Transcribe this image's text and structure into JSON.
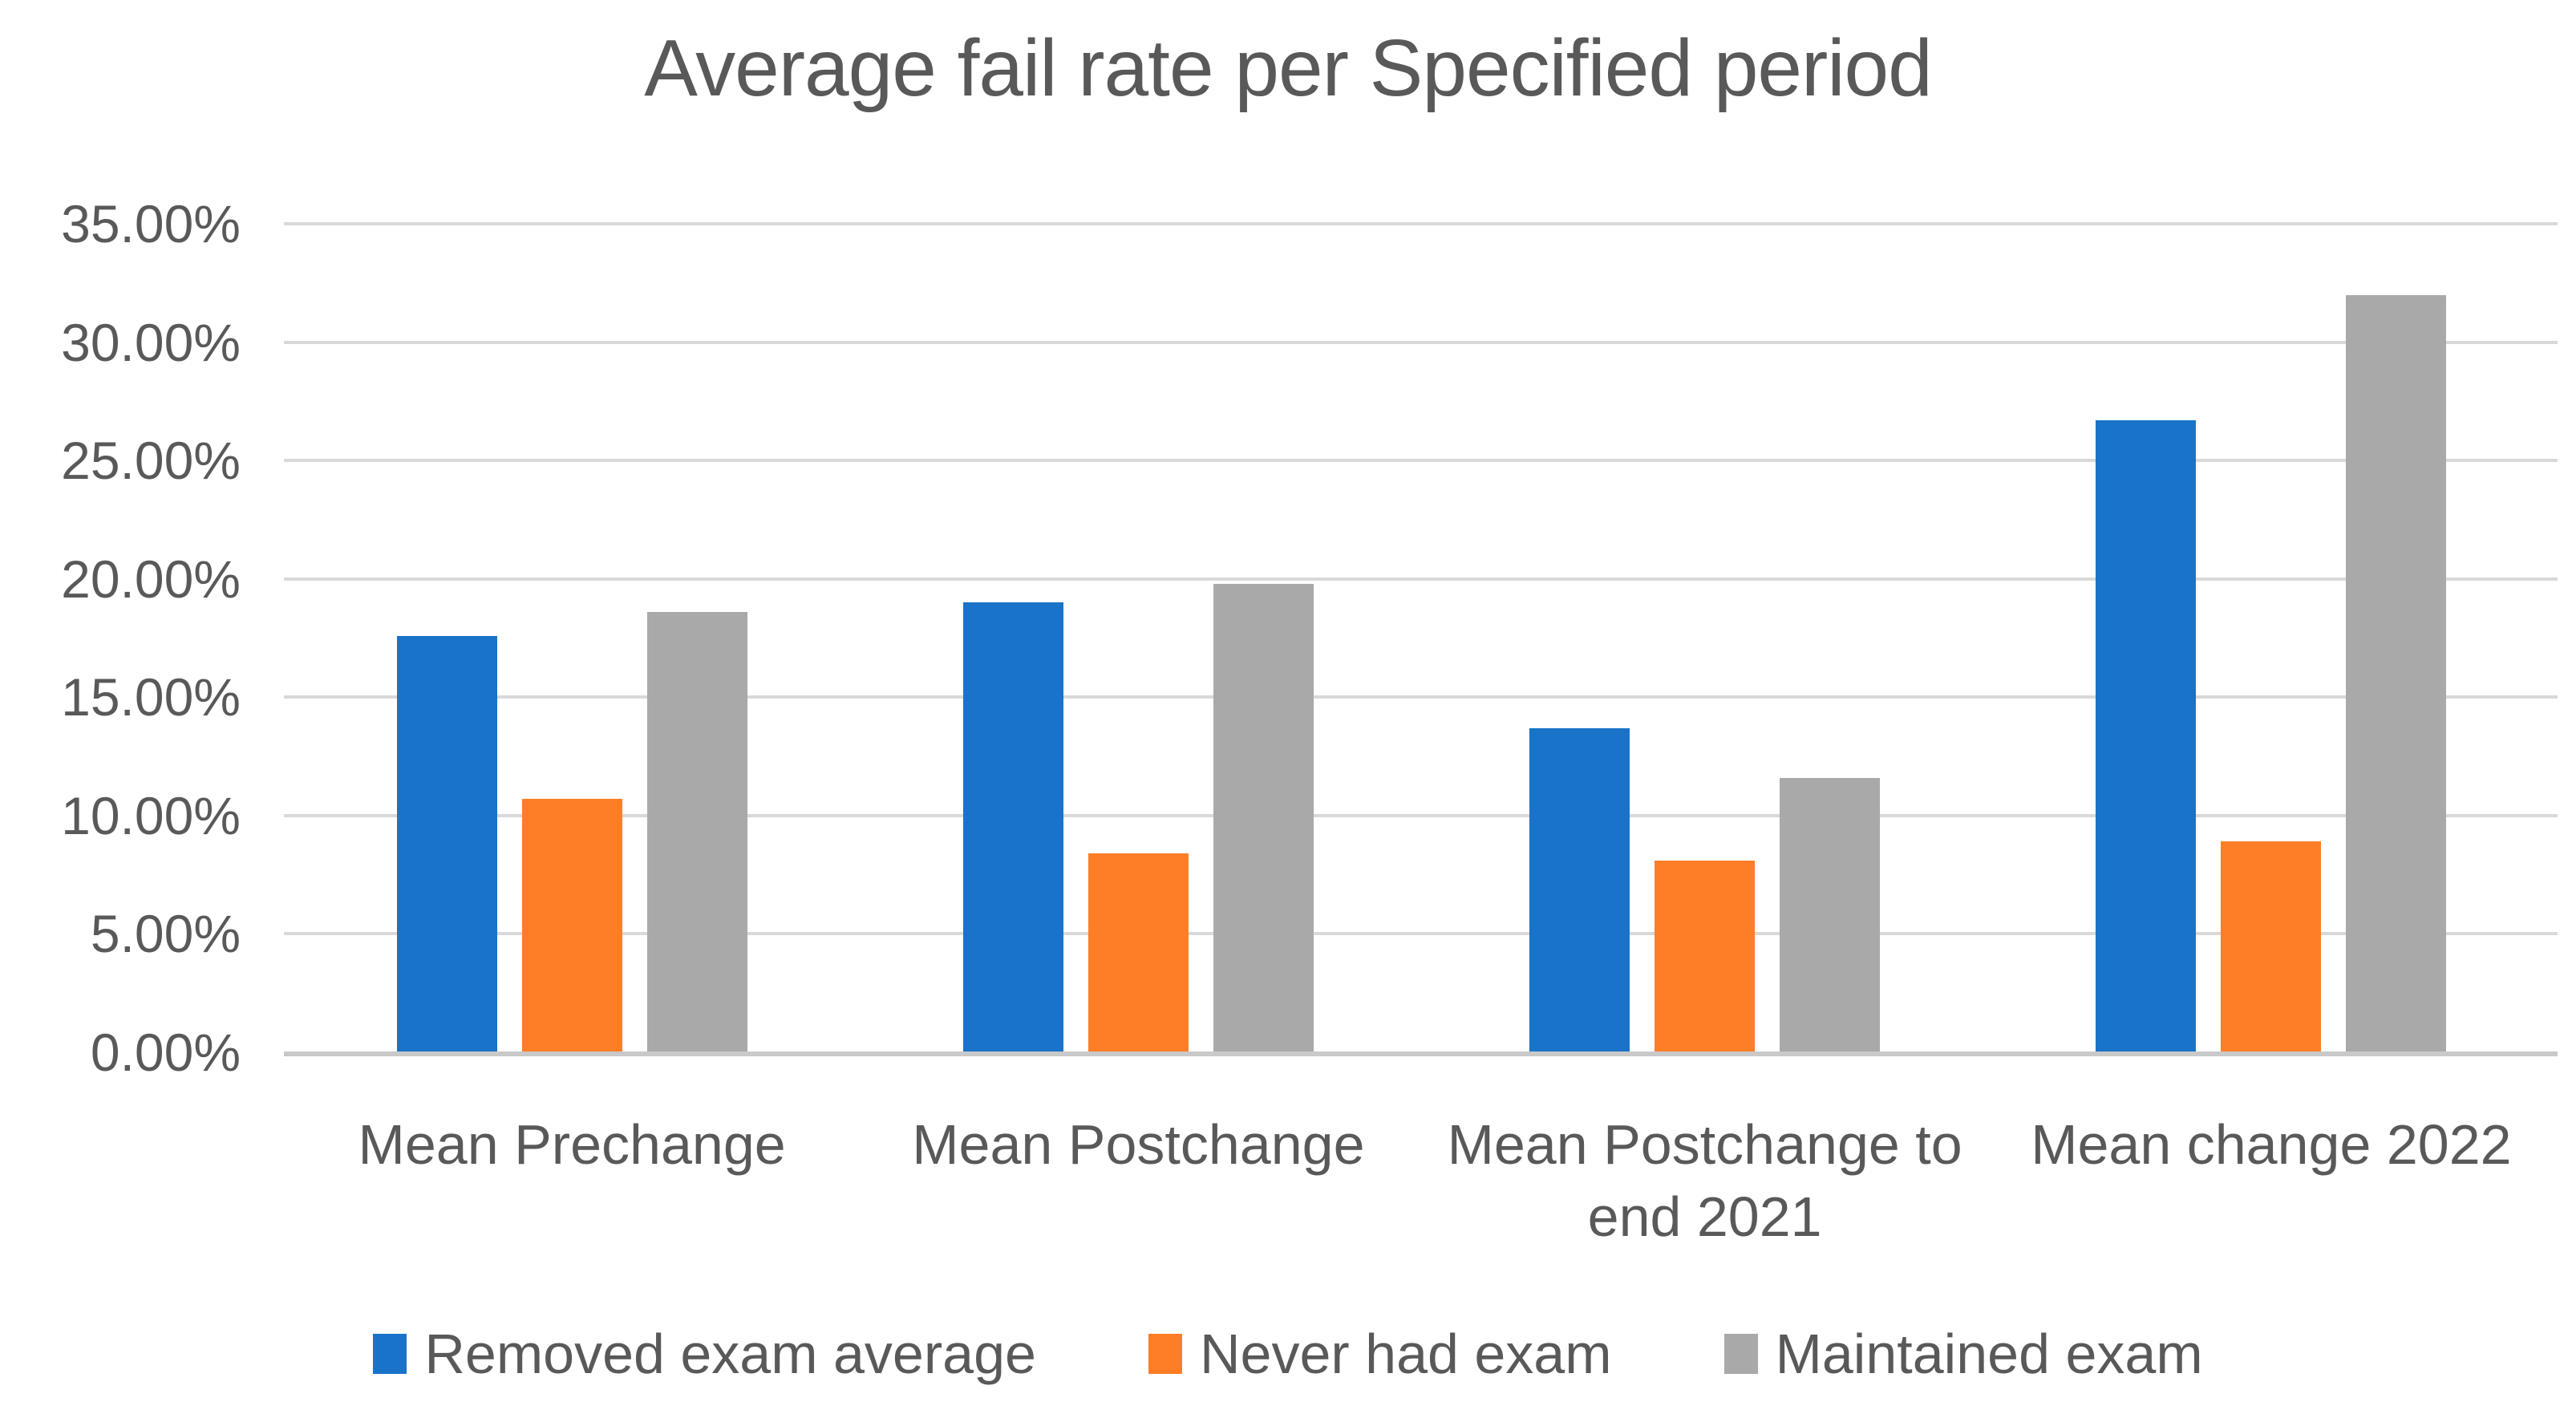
{
  "chart_data": {
    "type": "bar",
    "title": "Average fail rate per Specified period",
    "categories": [
      "Mean Prechange",
      "Mean Postchange",
      "Mean Postchange to end 2021",
      "Mean change 2022"
    ],
    "series": [
      {
        "name": "Removed exam average",
        "color": "#1973C8",
        "values": [
          17.6,
          19.0,
          13.7,
          26.7
        ]
      },
      {
        "name": "Never had exam",
        "color": "#FD7E27",
        "values": [
          10.7,
          8.4,
          8.1,
          8.9
        ]
      },
      {
        "name": "Maintained exam",
        "color": "#A9A9A9",
        "values": [
          18.6,
          19.8,
          11.6,
          32.0
        ]
      }
    ],
    "y_axis": {
      "min": 0,
      "max": 35,
      "step": 5,
      "tick_labels": [
        "35.00%",
        "30.00%",
        "25.00%",
        "20.00%",
        "15.00%",
        "10.00%",
        "5.00%",
        "0.00%"
      ],
      "format": "percent"
    },
    "grid": true,
    "legend_position": "bottom",
    "style": {
      "text_color": "#595959",
      "gridline_color": "#D9D9D9",
      "axis_line_color": "#C9C9C9",
      "background": "#FFFFFF"
    }
  }
}
